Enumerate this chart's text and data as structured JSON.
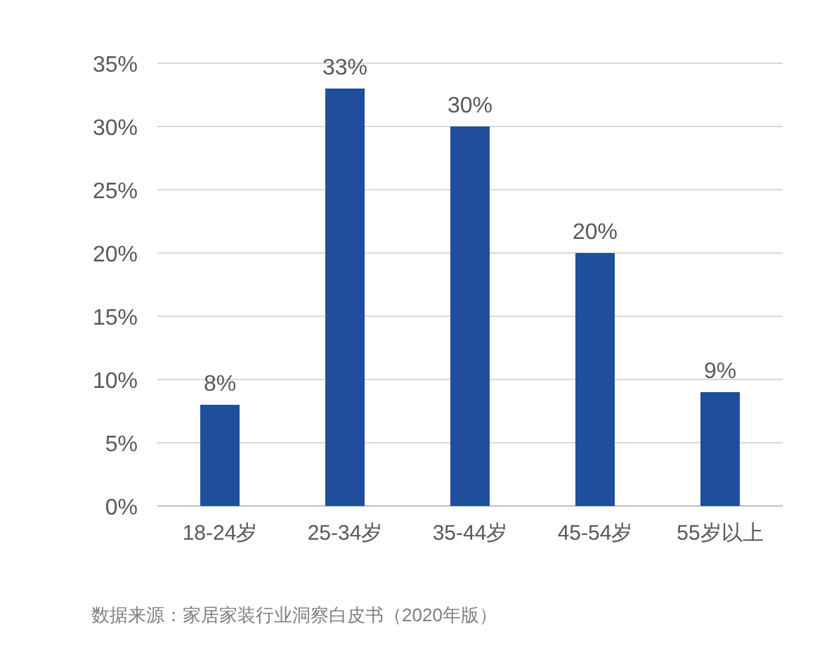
{
  "chart_data": {
    "type": "bar",
    "categories": [
      "18-24岁",
      "25-34岁",
      "35-44岁",
      "45-54岁",
      "55岁以上"
    ],
    "values": [
      8,
      33,
      30,
      20,
      9
    ],
    "color": "#1f4e9c",
    "data_labels": true,
    "value_labels": [
      "8%",
      "33%",
      "30%",
      "20%",
      "9%"
    ],
    "ylim": [
      0,
      35
    ],
    "yticks": [
      {
        "value": 0,
        "label": "0%"
      },
      {
        "value": 5,
        "label": "5%"
      },
      {
        "value": 10,
        "label": "10%"
      },
      {
        "value": 15,
        "label": "15%"
      },
      {
        "value": 20,
        "label": "20%"
      },
      {
        "value": 25,
        "label": "25%"
      },
      {
        "value": 30,
        "label": "30%"
      },
      {
        "value": 35,
        "label": "35%"
      }
    ],
    "grid": "y",
    "annotations": [
      "数据来源：家居家装行业洞察白皮书（2020年版）"
    ]
  }
}
